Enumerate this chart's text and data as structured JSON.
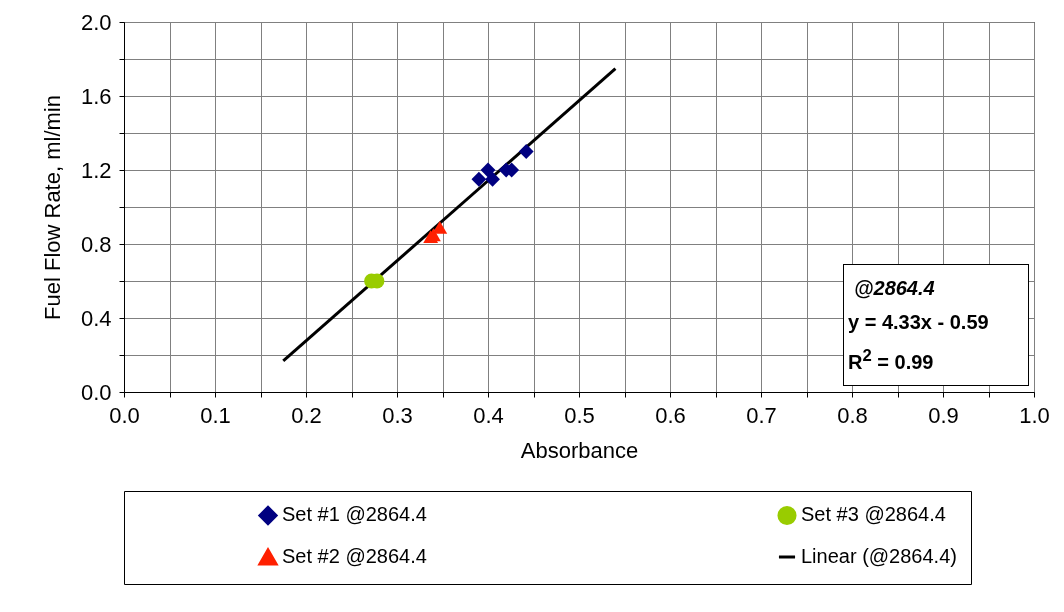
{
  "chart_data": {
    "type": "scatter",
    "xlabel": "Absorbance",
    "ylabel": "Fuel Flow Rate, ml/min",
    "xlim": [
      0,
      1
    ],
    "ylim": [
      0,
      2
    ],
    "xticks": [
      {
        "value": 0,
        "label": "0.0"
      },
      {
        "value": 0.05,
        "label": null
      },
      {
        "value": 0.1,
        "label": "0.1"
      },
      {
        "value": 0.15,
        "label": null
      },
      {
        "value": 0.2,
        "label": "0.2"
      },
      {
        "value": 0.25,
        "label": null
      },
      {
        "value": 0.3,
        "label": "0.3"
      },
      {
        "value": 0.35,
        "label": null
      },
      {
        "value": 0.4,
        "label": "0.4"
      },
      {
        "value": 0.45,
        "label": null
      },
      {
        "value": 0.5,
        "label": "0.5"
      },
      {
        "value": 0.55,
        "label": null
      },
      {
        "value": 0.6,
        "label": "0.6"
      },
      {
        "value": 0.65,
        "label": null
      },
      {
        "value": 0.7,
        "label": "0.7"
      },
      {
        "value": 0.75,
        "label": null
      },
      {
        "value": 0.8,
        "label": "0.8"
      },
      {
        "value": 0.85,
        "label": null
      },
      {
        "value": 0.9,
        "label": "0.9"
      },
      {
        "value": 0.95,
        "label": null
      },
      {
        "value": 1,
        "label": "1.0"
      }
    ],
    "yticks": [
      {
        "value": 0,
        "label": "0.0"
      },
      {
        "value": 0.2,
        "label": null
      },
      {
        "value": 0.4,
        "label": "0.4"
      },
      {
        "value": 0.6,
        "label": null
      },
      {
        "value": 0.8,
        "label": "0.8"
      },
      {
        "value": 1,
        "label": null
      },
      {
        "value": 1.2,
        "label": "1.2"
      },
      {
        "value": 1.4,
        "label": null
      },
      {
        "value": 1.6,
        "label": "1.6"
      },
      {
        "value": 1.8,
        "label": null
      },
      {
        "value": 2,
        "label": "2.0"
      }
    ],
    "grid": true,
    "legend": "bottom",
    "annotations": [
      "@2864.4",
      "y = 4.33x - 0.59",
      "R$^{2}$ = 0.99"
    ],
    "series": [
      {
        "name": "Set #1 @2864.4",
        "type": "scatter",
        "marker": "diamond",
        "color": "#000080",
        "x": [
          0.39,
          0.4,
          0.405,
          0.42,
          0.426,
          0.442
        ],
        "values": [
          1.15,
          1.2,
          1.15,
          1.2,
          1.2,
          1.3
        ]
      },
      {
        "name": "Set #2 @2864.4",
        "type": "scatter",
        "marker": "triangle",
        "color": "#ff2000",
        "x": [
          0.337,
          0.34,
          0.347
        ],
        "values": [
          0.84,
          0.85,
          0.89
        ]
      },
      {
        "name": "Set #3 @2864.4",
        "type": "scatter",
        "marker": "circle",
        "color": "#99cc00",
        "x": [
          0.272,
          0.278
        ],
        "values": [
          0.6,
          0.6
        ]
      },
      {
        "name": "Linear (@2864.4)",
        "type": "line",
        "marker": "none",
        "color": "#000000",
        "x": [
          0.175,
          0.54
        ],
        "values": [
          0.168,
          1.748
        ]
      }
    ]
  }
}
